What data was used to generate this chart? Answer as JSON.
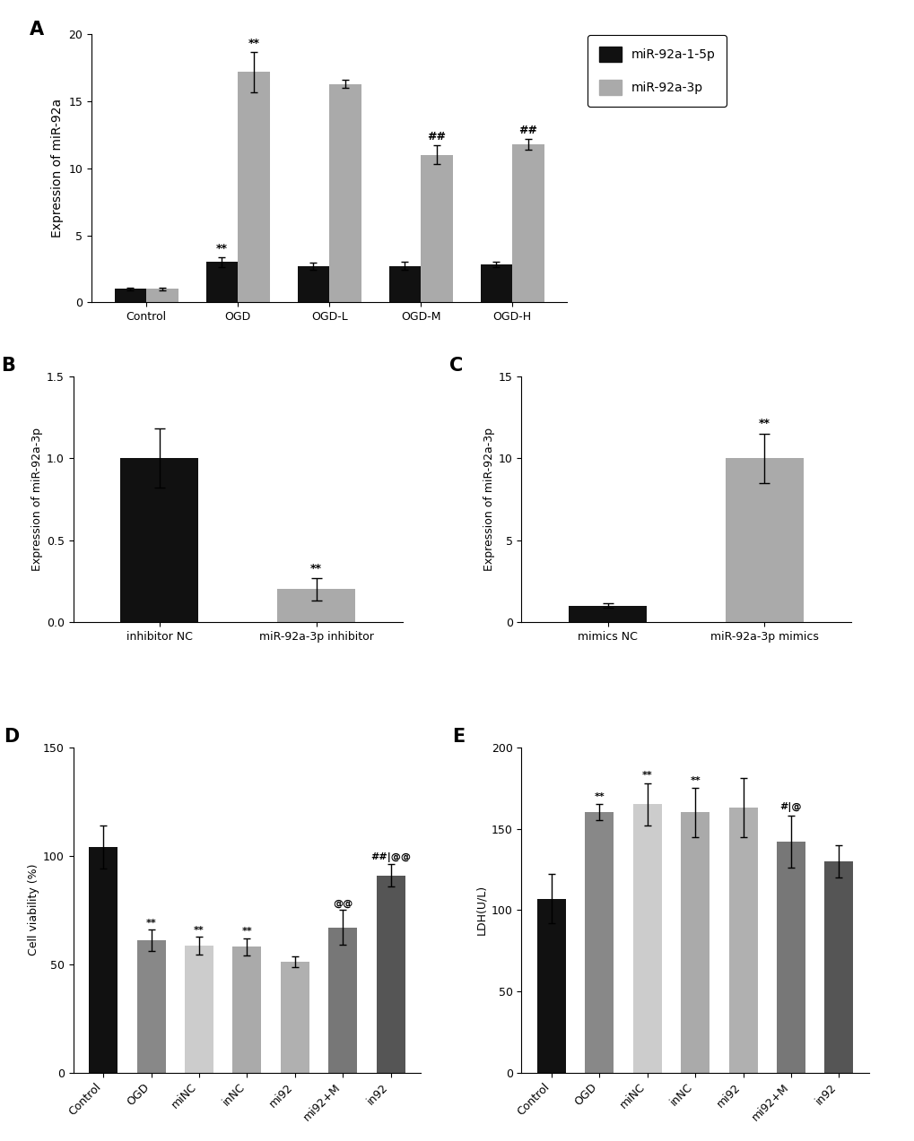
{
  "panelA": {
    "categories": [
      "Control",
      "OGD",
      "OGD-L",
      "OGD-M",
      "OGD-H"
    ],
    "mir92a_1_5p_values": [
      1.0,
      3.0,
      2.7,
      2.7,
      2.8
    ],
    "mir92a_1_5p_errors": [
      0.1,
      0.35,
      0.25,
      0.3,
      0.2
    ],
    "mir92a_3p_values": [
      1.0,
      17.2,
      16.3,
      11.0,
      11.8
    ],
    "mir92a_3p_errors": [
      0.1,
      1.5,
      0.3,
      0.7,
      0.4
    ],
    "ylabel": "Expression of miR-92a",
    "ylim": [
      0,
      20
    ],
    "yticks": [
      0,
      5,
      10,
      15,
      20
    ],
    "color_5p": "#111111",
    "color_3p": "#aaaaaa",
    "annotations_5p": [
      "",
      "**",
      "",
      "",
      ""
    ],
    "annotations_3p": [
      "",
      "**",
      "",
      "##",
      "##"
    ]
  },
  "panelB": {
    "categories": [
      "inhibitor NC",
      "miR-92a-3p inhibitor"
    ],
    "values": [
      1.0,
      0.2
    ],
    "errors": [
      0.18,
      0.07
    ],
    "colors": [
      "#111111",
      "#aaaaaa"
    ],
    "ylabel": "Expression of miR-92a-3p",
    "ylim": [
      0,
      1.5
    ],
    "yticks": [
      0.0,
      0.5,
      1.0,
      1.5
    ],
    "annotations": [
      "",
      "**"
    ]
  },
  "panelC": {
    "categories": [
      "mimics NC",
      "miR-92a-3p mimics"
    ],
    "values": [
      1.0,
      10.0
    ],
    "errors": [
      0.15,
      1.5
    ],
    "colors": [
      "#111111",
      "#aaaaaa"
    ],
    "ylabel": "Expression of miR-92a-3p",
    "ylim": [
      0,
      15
    ],
    "yticks": [
      0,
      5,
      10,
      15
    ],
    "annotations": [
      "",
      "**"
    ]
  },
  "panelD": {
    "categories": [
      "Control",
      "OGD",
      "miNC",
      "inNC",
      "mi92",
      "mi92+M",
      "in92"
    ],
    "values": [
      104.0,
      61.0,
      58.5,
      58.0,
      51.0,
      67.0,
      91.0
    ],
    "errors": [
      10.0,
      5.0,
      4.0,
      4.0,
      2.5,
      8.0,
      5.0
    ],
    "colors": [
      "#111111",
      "#888888",
      "#cccccc",
      "#aaaaaa",
      "#b0b0b0",
      "#777777",
      "#555555"
    ],
    "ylabel": "Cell viability (%)",
    "ylim": [
      0,
      150
    ],
    "yticks": [
      0,
      50,
      100,
      150
    ],
    "annotations_d": [
      "",
      "**",
      "**",
      "**",
      "",
      "@@",
      "##|@@"
    ]
  },
  "panelE": {
    "categories": [
      "Control",
      "OGD",
      "miNC",
      "inNC",
      "mi92",
      "mi92+M",
      "in92"
    ],
    "values": [
      107.0,
      160.0,
      165.0,
      160.0,
      163.0,
      142.0,
      130.0
    ],
    "errors": [
      15.0,
      5.0,
      13.0,
      15.0,
      18.0,
      16.0,
      10.0
    ],
    "colors": [
      "#111111",
      "#888888",
      "#cccccc",
      "#aaaaaa",
      "#b0b0b0",
      "#777777",
      "#555555"
    ],
    "ylabel": "LDH(U/L)",
    "ylim": [
      0,
      200
    ],
    "yticks": [
      0,
      50,
      100,
      150,
      200
    ],
    "annotations_e": [
      "",
      "**",
      "**",
      "**",
      "",
      "#|@",
      ""
    ]
  },
  "background_color": "#ffffff"
}
